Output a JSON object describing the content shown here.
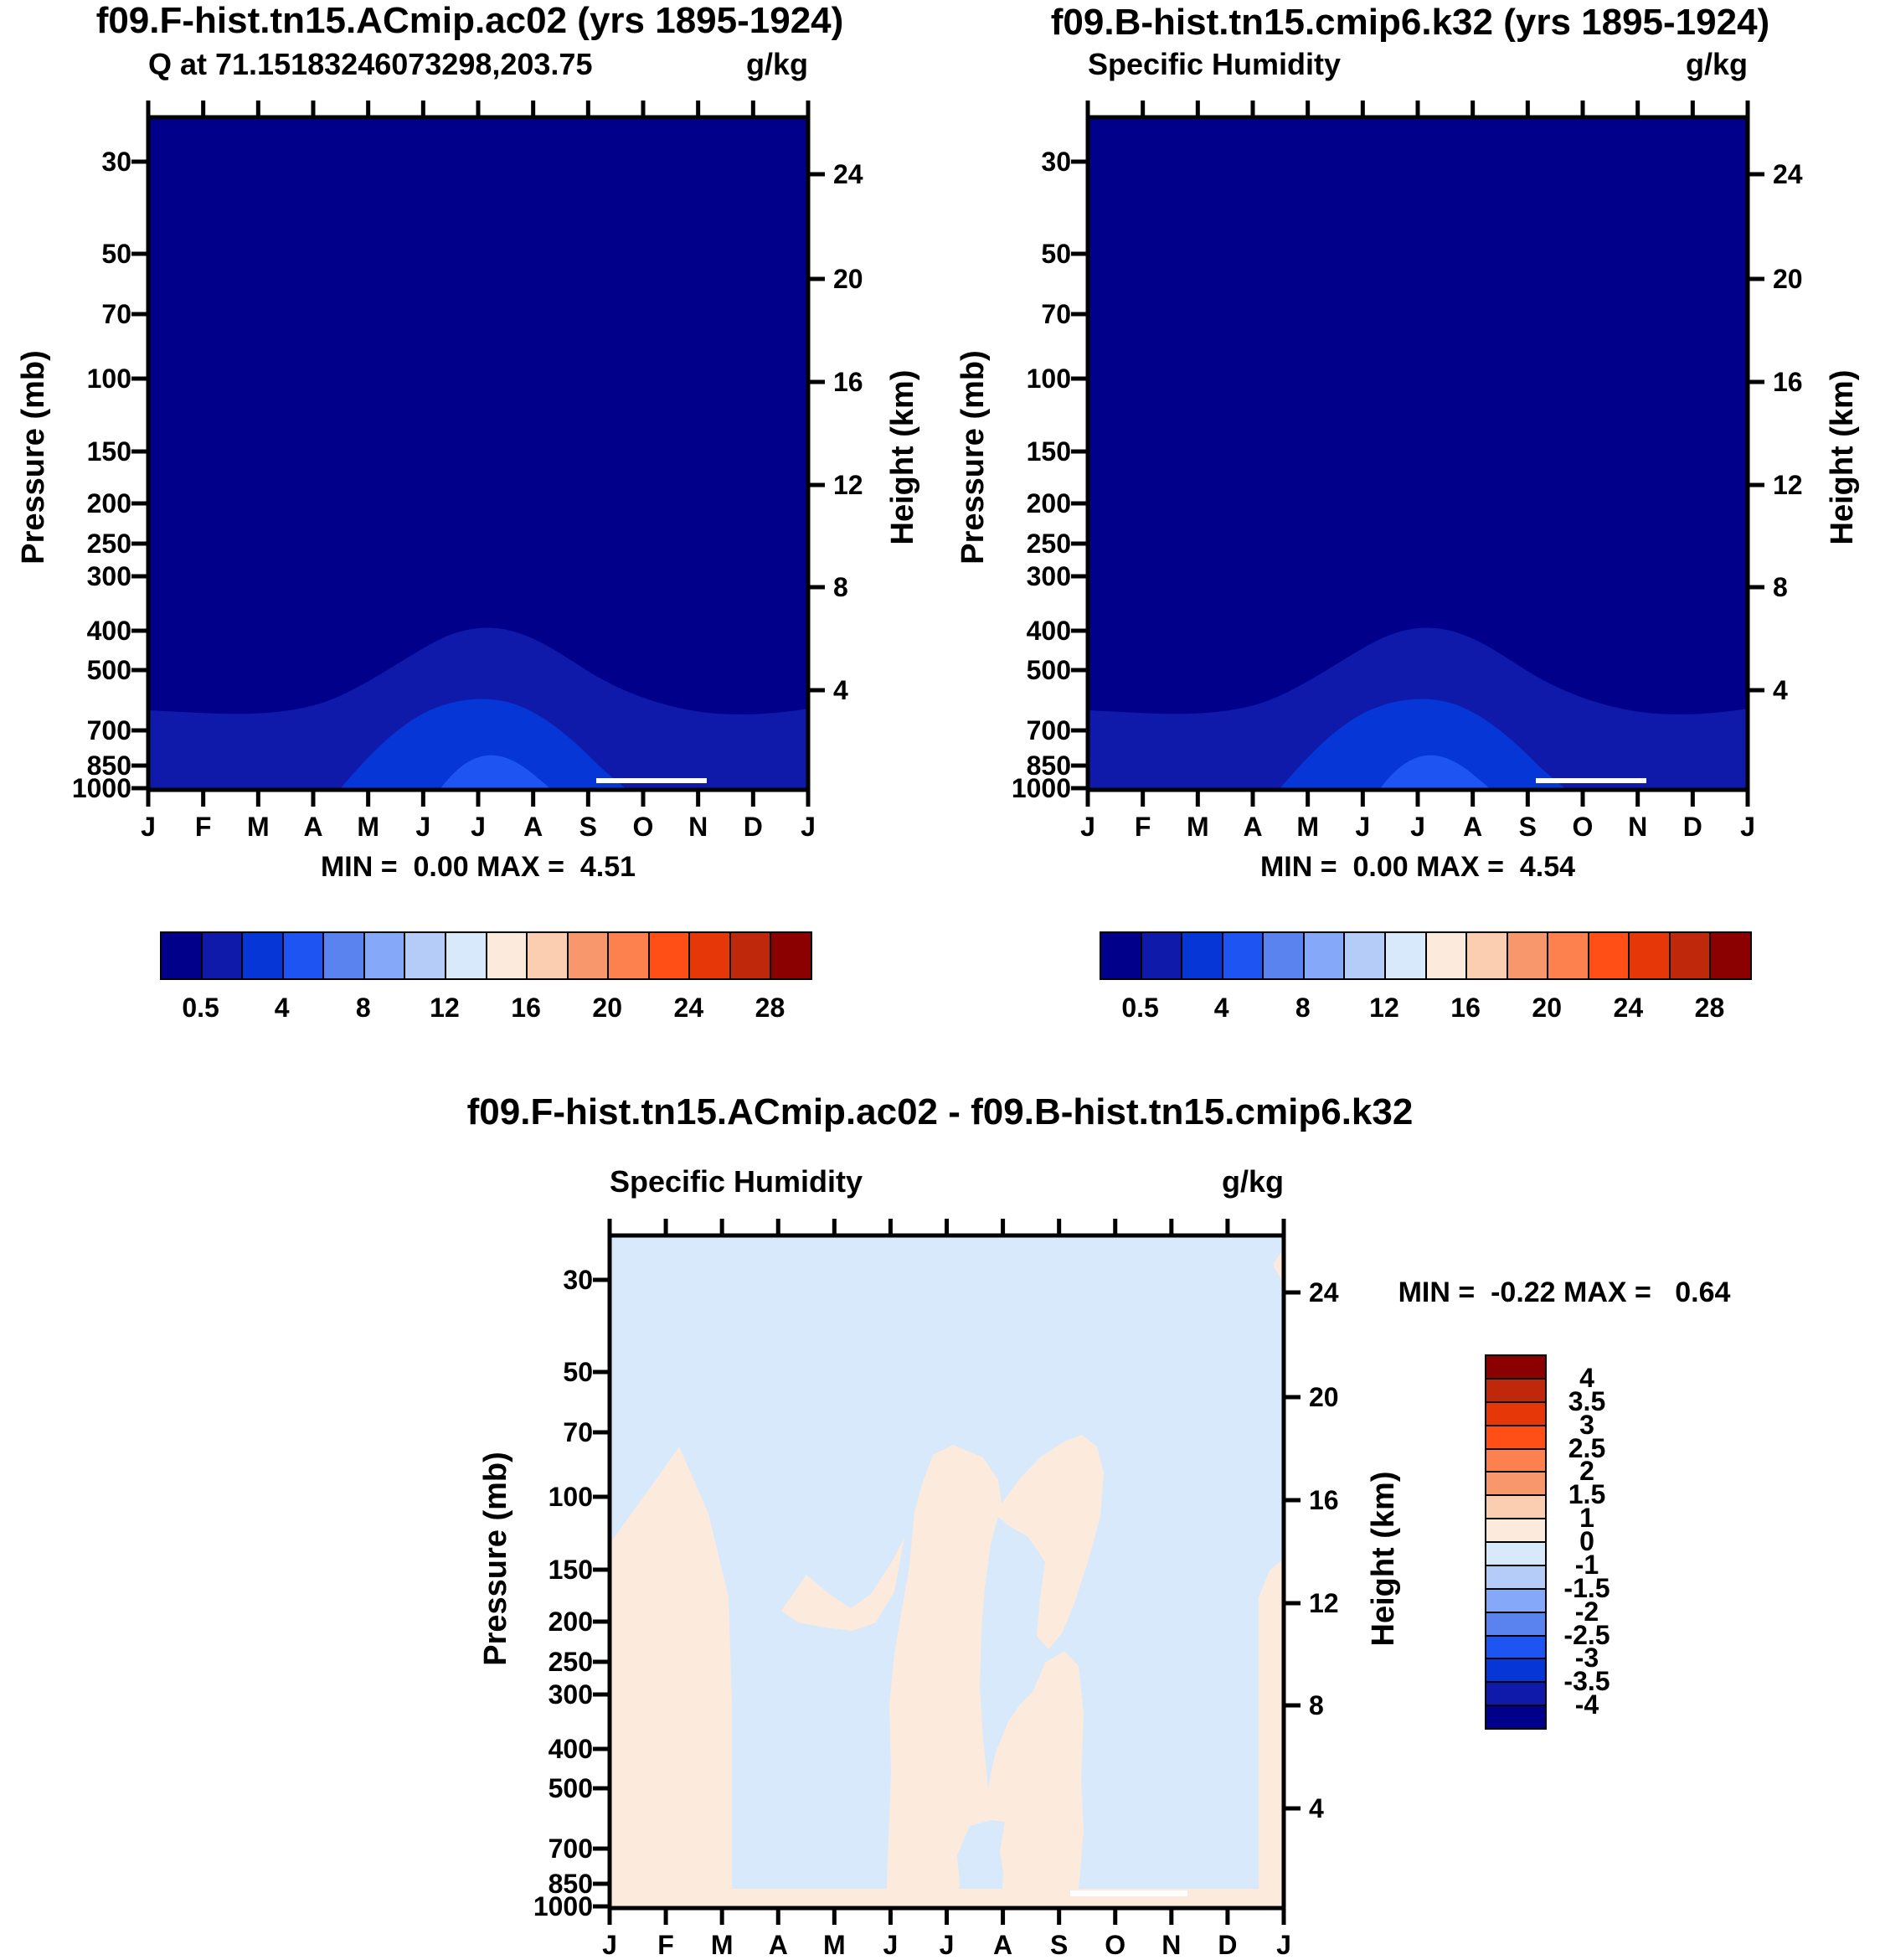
{
  "page": {
    "background": "#FFFFFF"
  },
  "palette": [
    "#00008B",
    "#0F1AAA",
    "#0736D6",
    "#1E55F2",
    "#5A83F0",
    "#85A8F8",
    "#B6CCF8",
    "#D8E9FB",
    "#FCEBDC",
    "#FBCDB1",
    "#F9976C",
    "#FC814E",
    "#FF4E16",
    "#E63708",
    "#BF280A",
    "#8B0000"
  ],
  "axes": {
    "pressure_label": "Pressure (mb)",
    "height_label": "Height (km)",
    "pressure_ticks": [
      "30",
      "50",
      "70",
      "100",
      "150",
      "200",
      "250",
      "300",
      "400",
      "500",
      "700",
      "850",
      "1000"
    ],
    "height_ticks": [
      "24",
      "20",
      "16",
      "12",
      "8",
      "4"
    ],
    "month_ticks": [
      "J",
      "F",
      "M",
      "A",
      "M",
      "J",
      "J",
      "A",
      "S",
      "O",
      "N",
      "D",
      "J"
    ]
  },
  "panels": [
    {
      "id": "top-left",
      "title": "f09.F-hist.tn15.ACmip.ac02 (yrs 1895-1924)",
      "subtitle": "Q at 71.15183246073298,203.75",
      "units": "g/kg",
      "stats": "MIN =  0.00 MAX =  4.51",
      "colorbar_labels": [
        "0.5",
        "4",
        "8",
        "12",
        "16",
        "20",
        "24",
        "28"
      ]
    },
    {
      "id": "top-right",
      "title": "f09.B-hist.tn15.cmip6.k32 (yrs 1895-1924)",
      "subtitle": "Specific Humidity",
      "units": "g/kg",
      "stats": "MIN =  0.00 MAX =  4.54",
      "colorbar_labels": [
        "0.5",
        "4",
        "8",
        "12",
        "16",
        "20",
        "24",
        "28"
      ]
    },
    {
      "id": "bottom-difference",
      "title": "f09.F-hist.tn15.ACmip.ac02 - f09.B-hist.tn15.cmip6.k32",
      "subtitle": "Specific Humidity",
      "units": "g/kg",
      "stats": "MIN =  -0.22 MAX =   0.64",
      "colorbar_labels": [
        "4",
        "3.5",
        "3",
        "2.5",
        "2",
        "1.5",
        "1",
        "0",
        "-1",
        "-1.5",
        "-2",
        "-2.5",
        "-3",
        "-3.5",
        "-4"
      ]
    }
  ],
  "chart_data": [
    {
      "type": "contour",
      "panel": "top-left",
      "title": "f09.F-hist.tn15.ACmip.ac02 (yrs 1895-1924)",
      "subtitle": "Q at 71.15183246073298,203.75",
      "units": "g/kg",
      "x_labels": [
        "J",
        "F",
        "M",
        "A",
        "M",
        "J",
        "J",
        "A",
        "S",
        "O",
        "N",
        "D",
        "J"
      ],
      "y_left": {
        "label": "Pressure (mb)",
        "scale": "log",
        "ticks": [
          30,
          50,
          70,
          100,
          150,
          200,
          250,
          300,
          400,
          500,
          700,
          850,
          1000
        ]
      },
      "y_right": {
        "label": "Height (km)",
        "ticks": [
          24,
          20,
          16,
          12,
          8,
          4
        ]
      },
      "contour_levels": [
        0.5,
        2,
        4,
        6,
        8,
        10,
        12,
        14,
        16,
        18,
        20,
        22,
        24,
        26,
        28
      ],
      "min": 0.0,
      "max": 4.51,
      "visible_bands": [
        {
          "range": "< 0.5",
          "color": "#00008B",
          "where": "entire upper atmosphere; lower boundary near 650 mb, rising in a dome to ~420 mb in July"
        },
        {
          "range": "0.5-2",
          "color": "#0F1AAA",
          "where": "below ~650 mb year-round"
        },
        {
          "range": "2-4",
          "color": "#0736D6",
          "where": "dome below ~520 mb from May to September"
        },
        {
          "range": "4-4.51",
          "color": "#1E55F2",
          "where": "small near-surface pocket June-August"
        }
      ],
      "annotations": [
        "short white horizontal segment near 1000 mb between September and November"
      ]
    },
    {
      "type": "contour",
      "panel": "top-right",
      "title": "f09.B-hist.tn15.cmip6.k32 (yrs 1895-1924)",
      "subtitle": "Specific Humidity",
      "units": "g/kg",
      "x_labels": [
        "J",
        "F",
        "M",
        "A",
        "M",
        "J",
        "J",
        "A",
        "S",
        "O",
        "N",
        "D",
        "J"
      ],
      "y_left": {
        "label": "Pressure (mb)",
        "scale": "log",
        "ticks": [
          30,
          50,
          70,
          100,
          150,
          200,
          250,
          300,
          400,
          500,
          700,
          850,
          1000
        ]
      },
      "y_right": {
        "label": "Height (km)",
        "ticks": [
          24,
          20,
          16,
          12,
          8,
          4
        ]
      },
      "contour_levels": [
        0.5,
        2,
        4,
        6,
        8,
        10,
        12,
        14,
        16,
        18,
        20,
        22,
        24,
        26,
        28
      ],
      "min": 0.0,
      "max": 4.54,
      "visible_bands": [
        {
          "range": "< 0.5",
          "color": "#00008B",
          "where": "entire upper atmosphere; lower boundary near 650 mb, rising in a dome to ~420 mb in July"
        },
        {
          "range": "0.5-2",
          "color": "#0F1AAA",
          "where": "below ~650 mb year-round"
        },
        {
          "range": "2-4",
          "color": "#0736D6",
          "where": "dome below ~520 mb from May to September"
        },
        {
          "range": "4-4.54",
          "color": "#1E55F2",
          "where": "small near-surface pocket June-August"
        }
      ],
      "annotations": [
        "short white horizontal segment near 1000 mb between September and November"
      ]
    },
    {
      "type": "contour",
      "panel": "bottom-difference",
      "title": "f09.F-hist.tn15.ACmip.ac02 - f09.B-hist.tn15.cmip6.k32",
      "subtitle": "Specific Humidity",
      "units": "g/kg",
      "x_labels": [
        "J",
        "F",
        "M",
        "A",
        "M",
        "J",
        "J",
        "A",
        "S",
        "O",
        "N",
        "D",
        "J"
      ],
      "y_left": {
        "label": "Pressure (mb)",
        "scale": "log",
        "ticks": [
          30,
          50,
          70,
          100,
          150,
          200,
          250,
          300,
          400,
          500,
          700,
          850,
          1000
        ]
      },
      "y_right": {
        "label": "Height (km)",
        "ticks": [
          24,
          20,
          16,
          12,
          8,
          4
        ]
      },
      "contour_levels": [
        -4,
        -3.5,
        -3,
        -2.5,
        -2,
        -1.5,
        -1,
        0,
        1,
        1.5,
        2,
        2.5,
        3,
        3.5,
        4
      ],
      "min": -0.22,
      "max": 0.64,
      "visible_bands": [
        {
          "range": "-1 to 0",
          "color": "#D8E9FB",
          "where": "most of the domain above ~250 mb plus columns Mar-May, around July, and Oct-Dec in the lower troposphere"
        },
        {
          "range": "0 to 1",
          "color": "#FCEBDC",
          "where": "patches near 100-250 mb (Jan-Feb, Jun-Sep) and much of the lower troposphere Jan-Mar, Jun-Sep and near the right edge"
        }
      ],
      "annotations": [
        "short white horizontal segment near 1000 mb between September and November"
      ]
    }
  ]
}
